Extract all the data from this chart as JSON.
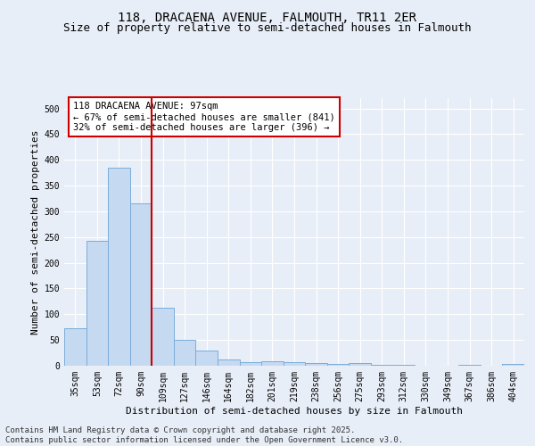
{
  "title_line1": "118, DRACAENA AVENUE, FALMOUTH, TR11 2ER",
  "title_line2": "Size of property relative to semi-detached houses in Falmouth",
  "xlabel": "Distribution of semi-detached houses by size in Falmouth",
  "ylabel": "Number of semi-detached properties",
  "categories": [
    "35sqm",
    "53sqm",
    "72sqm",
    "90sqm",
    "109sqm",
    "127sqm",
    "146sqm",
    "164sqm",
    "182sqm",
    "201sqm",
    "219sqm",
    "238sqm",
    "256sqm",
    "275sqm",
    "293sqm",
    "312sqm",
    "330sqm",
    "349sqm",
    "367sqm",
    "386sqm",
    "404sqm"
  ],
  "values": [
    73,
    242,
    385,
    315,
    113,
    50,
    29,
    13,
    7,
    8,
    7,
    5,
    4,
    5,
    1,
    1,
    0,
    0,
    1,
    0,
    3
  ],
  "bar_color": "#c5d9f1",
  "bar_edge_color": "#7aaddb",
  "vline_x": 3.5,
  "vline_color": "#cc0000",
  "annotation_text": "118 DRACAENA AVENUE: 97sqm\n← 67% of semi-detached houses are smaller (841)\n32% of semi-detached houses are larger (396) →",
  "annotation_box_color": "#ffffff",
  "annotation_box_edge": "#cc0000",
  "ylim": [
    0,
    520
  ],
  "yticks": [
    0,
    50,
    100,
    150,
    200,
    250,
    300,
    350,
    400,
    450,
    500
  ],
  "background_color": "#e8eef7",
  "grid_color": "#ffffff",
  "footer_text": "Contains HM Land Registry data © Crown copyright and database right 2025.\nContains public sector information licensed under the Open Government Licence v3.0.",
  "title_fontsize": 10,
  "subtitle_fontsize": 9,
  "axis_label_fontsize": 8,
  "tick_fontsize": 7,
  "annotation_fontsize": 7.5,
  "footer_fontsize": 6.5
}
